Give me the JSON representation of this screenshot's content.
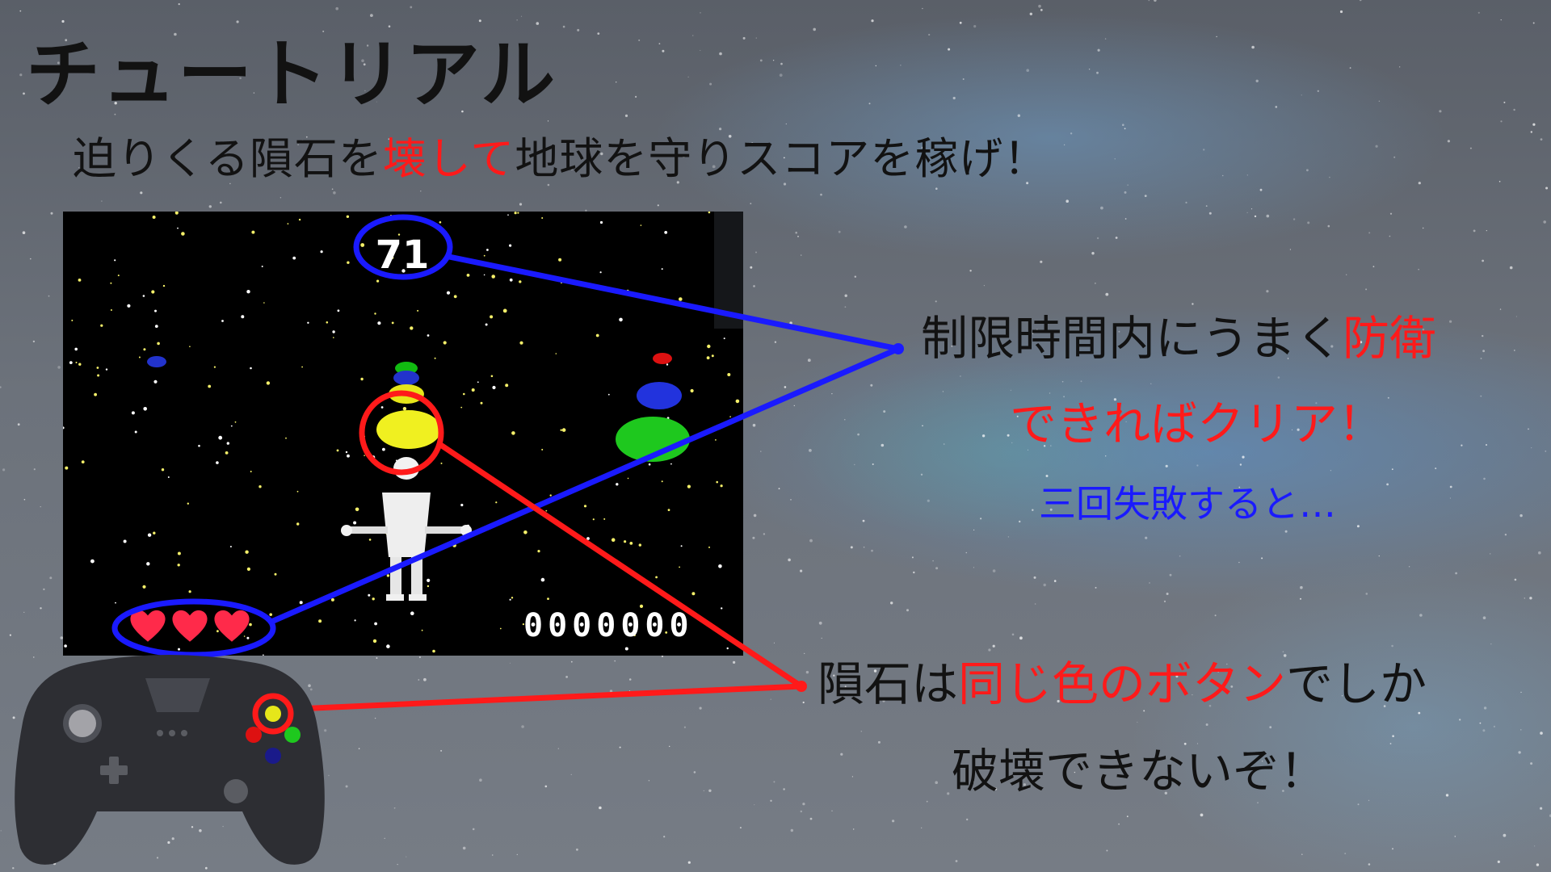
{
  "slide": {
    "title": "チュートリアル",
    "subtitle": {
      "part1": "迫りくる隕石を",
      "part2": "壊して",
      "part3": "地球を守りスコアを稼げ！"
    }
  },
  "game": {
    "timer": "71",
    "score": "0000000",
    "lives": 3
  },
  "annotations": {
    "time_limit_part1": "制限時間内にうまく",
    "time_limit_part2": "防衛",
    "clear_text": "できればクリア！",
    "fail_text": "三回失敗すると…",
    "button_part1": "隕石は",
    "button_part2": "同じ色のボタン",
    "button_part3": "でしか",
    "button_line2": "破壊できないぞ！"
  },
  "colors": {
    "accent_red": "#ff1a1a",
    "accent_blue": "#1a1aff",
    "text": "#121212"
  }
}
